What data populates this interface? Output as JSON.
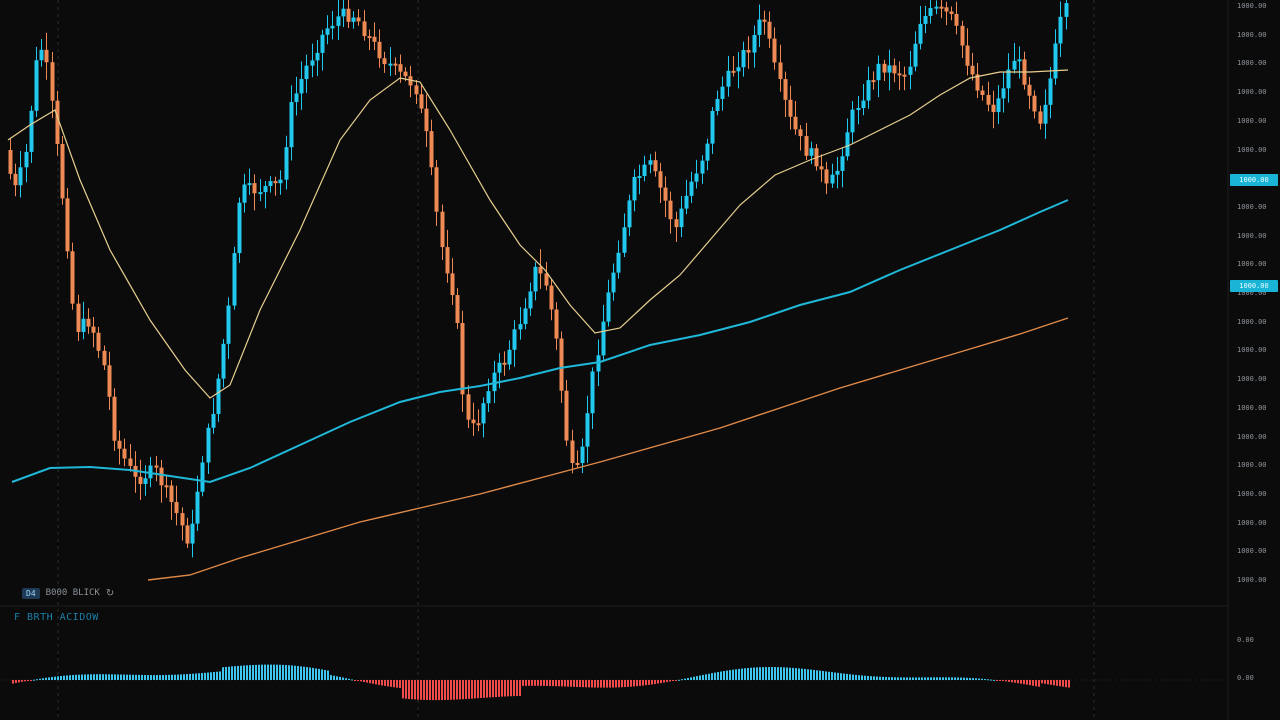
{
  "app": {
    "colors": {
      "background": "#0b0b0c",
      "bull": "#22c8ee",
      "bear": "#f08a55",
      "ema_fast": "#e7cf8e",
      "ema_mid": "#20b8d8",
      "ema_slow": "#e08a48",
      "hist_pos": "#3fc6ef",
      "hist_neg": "#f34b4b",
      "tag_bg": "#1ab5d6"
    }
  },
  "symbol_bar": {
    "icon_label": "D4",
    "text": "B000 BLICK",
    "button_icon": "refresh-icon"
  },
  "indicator": {
    "title": "F BRTH ACIDOW"
  },
  "price_axis": {
    "labels": [
      "1000.00",
      "1000.00",
      "1000.00",
      "1000.00",
      "1000.00",
      "1000.00",
      "1000.00",
      "1000.00",
      "1000.00",
      "1000.00",
      "1000.00",
      "1000.00",
      "1000.00",
      "1000.00",
      "1000.00",
      "1000.00",
      "1000.00",
      "1000.00",
      "1000.00",
      "1000.00",
      "1000.00"
    ],
    "tags": [
      "1000.00",
      "1000.00"
    ],
    "indicator_labels": [
      "0.00",
      "0.00"
    ]
  }
}
